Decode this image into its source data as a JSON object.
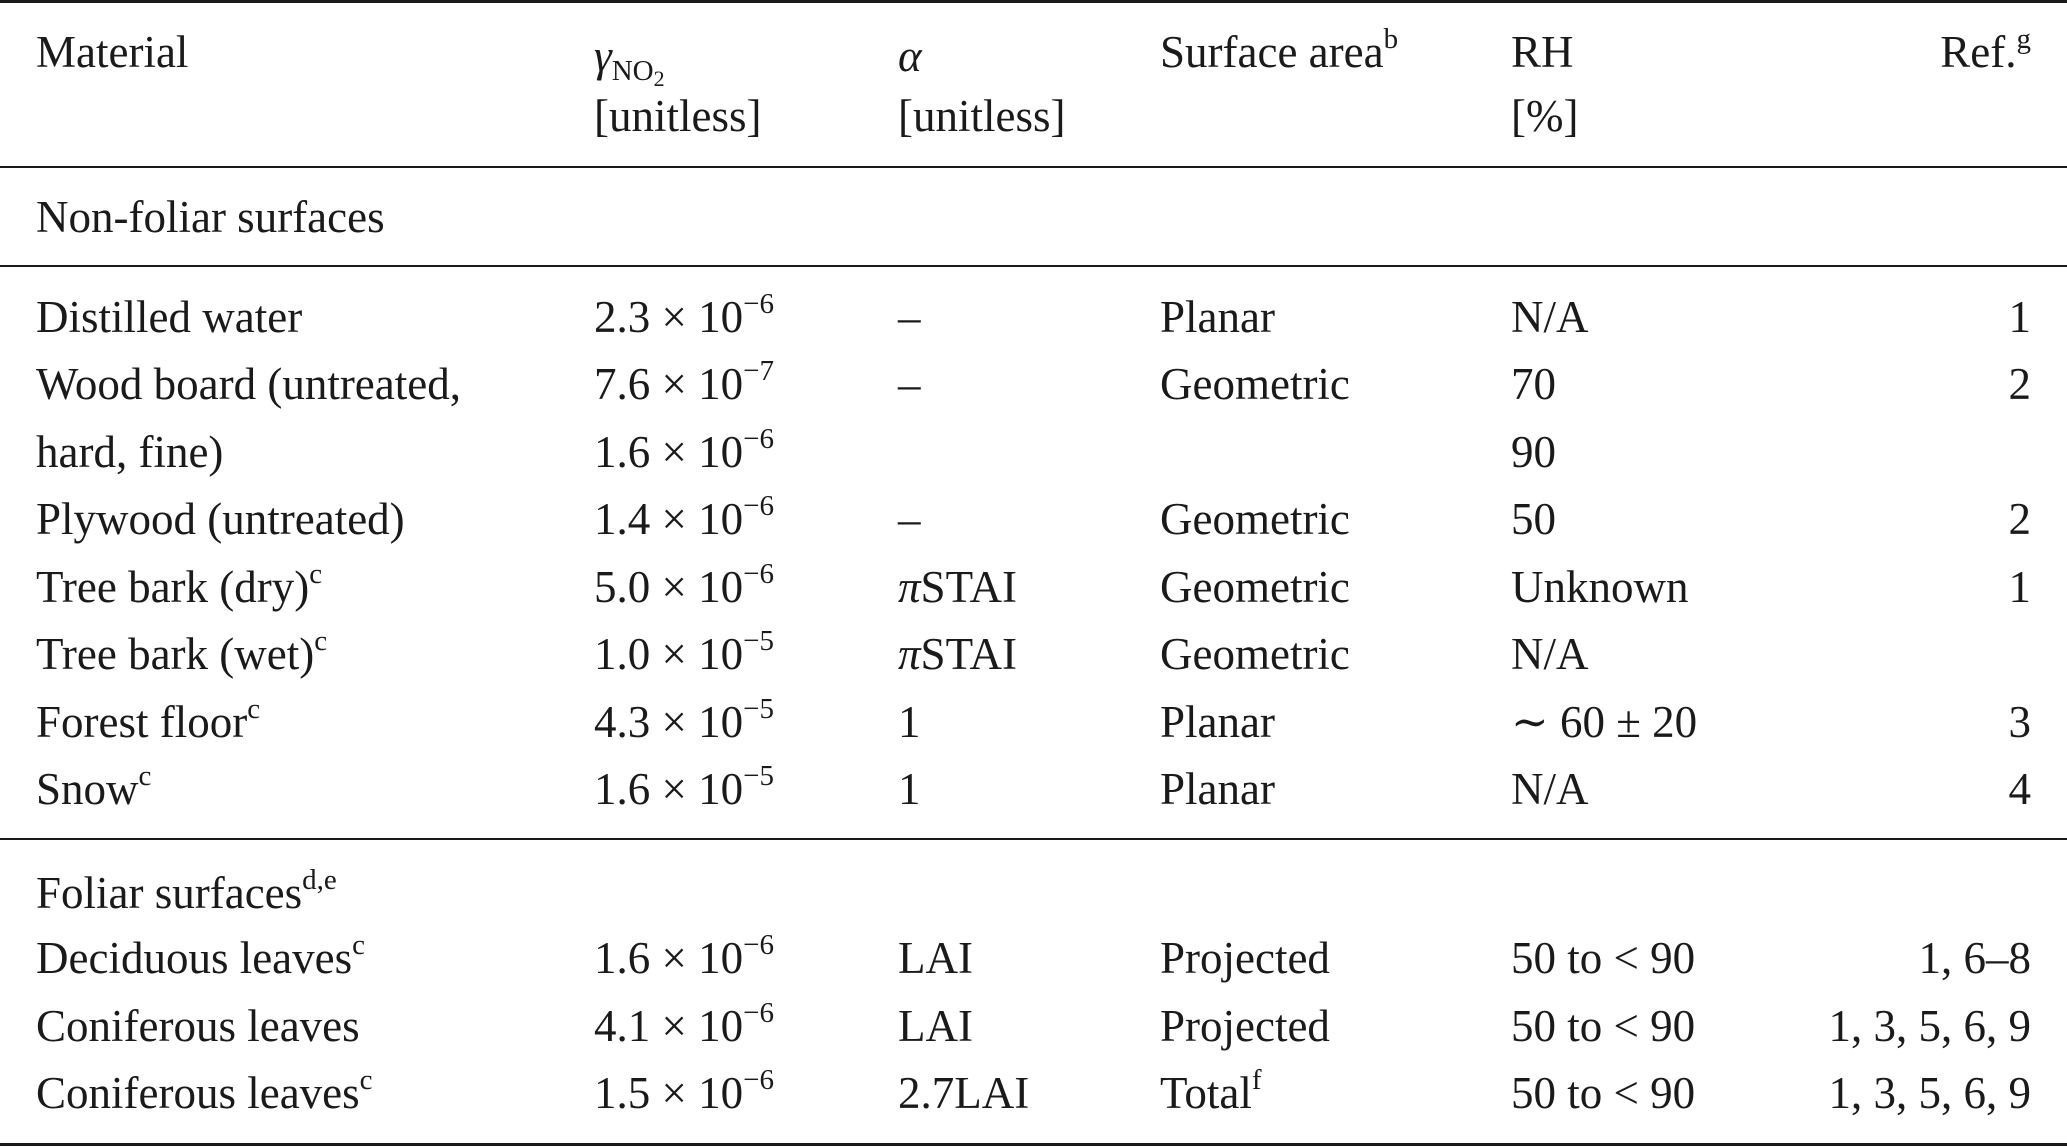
{
  "header": {
    "material": "Material",
    "gamma_symbol": "γ",
    "gamma_sub_main": "NO",
    "gamma_sub_sub": "2",
    "gamma_unit": "[unitless]",
    "alpha_symbol": "α",
    "alpha_unit": "[unitless]",
    "surface_area": "Surface area",
    "surface_area_note": "b",
    "rh": "RH",
    "rh_unit": "[%]",
    "ref": "Ref.",
    "ref_note": "g"
  },
  "sections": {
    "non_foliar": "Non-foliar surfaces",
    "foliar": "Foliar surfaces",
    "foliar_note": "d,e"
  },
  "rows": [
    {
      "material": "Distilled water",
      "note": "",
      "gamma": "2.3 × 10",
      "exp": "−6",
      "alpha": "–",
      "surface": "Planar",
      "surface_note": "",
      "rh": "N/A",
      "ref": "1"
    },
    {
      "material": "Wood board (untreated,",
      "note": "",
      "gamma": "7.6 × 10",
      "exp": "−7",
      "alpha": "–",
      "surface": "Geometric",
      "surface_note": "",
      "rh": "70",
      "ref": "2"
    },
    {
      "material": "hard, fine)",
      "note": "",
      "gamma": "1.6 × 10",
      "exp": "−6",
      "alpha": "",
      "surface": "",
      "surface_note": "",
      "rh": "90",
      "ref": ""
    },
    {
      "material": "Plywood (untreated)",
      "note": "",
      "gamma": "1.4 × 10",
      "exp": "−6",
      "alpha": "–",
      "surface": "Geometric",
      "surface_note": "",
      "rh": "50",
      "ref": "2"
    },
    {
      "material": "Tree bark (dry)",
      "note": "c",
      "gamma": "5.0 × 10",
      "exp": "−6",
      "alpha": "πSTAI",
      "surface": "Geometric",
      "surface_note": "",
      "rh": "Unknown",
      "ref": "1"
    },
    {
      "material": "Tree bark (wet)",
      "note": "c",
      "gamma": "1.0 × 10",
      "exp": "−5",
      "alpha": "πSTAI",
      "surface": "Geometric",
      "surface_note": "",
      "rh": "N/A",
      "ref": ""
    },
    {
      "material": "Forest floor",
      "note": "c",
      "gamma": "4.3 × 10",
      "exp": "−5",
      "alpha": "1",
      "surface": "Planar",
      "surface_note": "",
      "rh": "∼ 60 ± 20",
      "ref": "3"
    },
    {
      "material": "Snow",
      "note": "c",
      "gamma": "1.6 × 10",
      "exp": "−5",
      "alpha": "1",
      "surface": "Planar",
      "surface_note": "",
      "rh": "N/A",
      "ref": "4"
    },
    {
      "material": "Deciduous leaves",
      "note": "c",
      "gamma": "1.6 × 10",
      "exp": "−6",
      "alpha": "LAI",
      "surface": "Projected",
      "surface_note": "",
      "rh": "50 to < 90",
      "ref": "1, 6–8"
    },
    {
      "material": "Coniferous leaves",
      "note": "",
      "gamma": "4.1 × 10",
      "exp": "−6",
      "alpha": "LAI",
      "surface": "Projected",
      "surface_note": "",
      "rh": "50 to < 90",
      "ref": "1, 3, 5, 6, 9"
    },
    {
      "material": "Coniferous leaves",
      "note": "c",
      "gamma": "1.5 × 10",
      "exp": "−6",
      "alpha": "2.7LAI",
      "surface": "Total",
      "surface_note": "f",
      "rh": "50 to < 90",
      "ref": "1, 3, 5, 6, 9"
    }
  ]
}
